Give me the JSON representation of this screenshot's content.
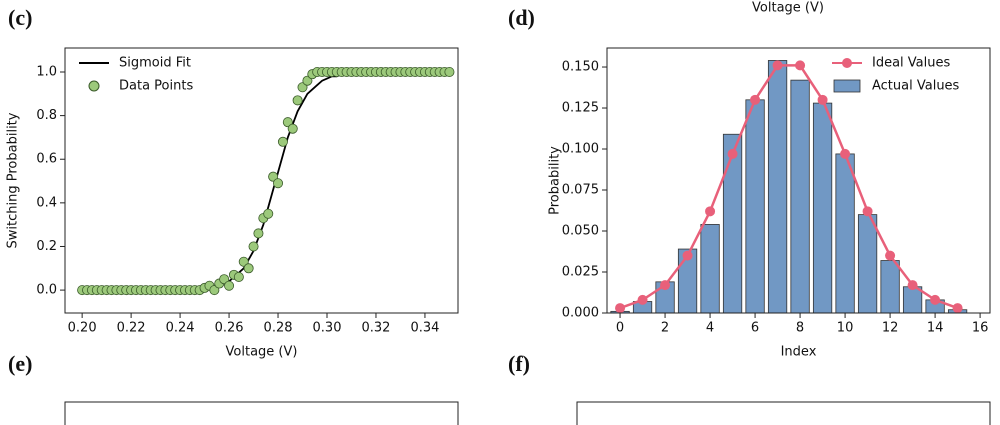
{
  "chart_data": [
    {
      "type": "scatter",
      "title": "(c)",
      "xlabel": "Voltage (V)",
      "ylabel": "Switching Probability",
      "legend": "upper left",
      "x": [
        0.2,
        0.202,
        0.204,
        0.206,
        0.208,
        0.21,
        0.212,
        0.214,
        0.216,
        0.218,
        0.22,
        0.222,
        0.224,
        0.226,
        0.228,
        0.23,
        0.232,
        0.234,
        0.236,
        0.238,
        0.24,
        0.242,
        0.244,
        0.246,
        0.248,
        0.25,
        0.252,
        0.254,
        0.256,
        0.258,
        0.26,
        0.262,
        0.264,
        0.266,
        0.268,
        0.27,
        0.272,
        0.274,
        0.276,
        0.278,
        0.28,
        0.282,
        0.284,
        0.286,
        0.288,
        0.29,
        0.292,
        0.294,
        0.296,
        0.298,
        0.3,
        0.302,
        0.304,
        0.306,
        0.308,
        0.31,
        0.312,
        0.314,
        0.316,
        0.318,
        0.32,
        0.322,
        0.324,
        0.326,
        0.328,
        0.33,
        0.332,
        0.334,
        0.336,
        0.338,
        0.34,
        0.342,
        0.344,
        0.346,
        0.348,
        0.35
      ],
      "series": [
        {
          "name": "Sigmoid Fit",
          "color": "#000000",
          "style": "line",
          "values": [
            0,
            0,
            0,
            0,
            0,
            0,
            0,
            0,
            0,
            0,
            0,
            0,
            0,
            0,
            0,
            0,
            0,
            0,
            0,
            0,
            0,
            0,
            0,
            0,
            0.01,
            0.01,
            0.01,
            0.02,
            0.02,
            0.03,
            0.04,
            0.06,
            0.08,
            0.1,
            0.14,
            0.18,
            0.24,
            0.3,
            0.38,
            0.46,
            0.54,
            0.62,
            0.7,
            0.76,
            0.82,
            0.86,
            0.9,
            0.92,
            0.94,
            0.96,
            0.97,
            0.98,
            0.98,
            0.99,
            0.99,
            0.99,
            1,
            1,
            1,
            1,
            1,
            1,
            1,
            1,
            1,
            1,
            1,
            1,
            1,
            1,
            1,
            1,
            1,
            1,
            1,
            1
          ]
        },
        {
          "name": "Data Points",
          "color": "#9cc97b",
          "style": "markers",
          "values": [
            0,
            0,
            0,
            0,
            0,
            0,
            0,
            0,
            0,
            0,
            0,
            0,
            0,
            0,
            0,
            0,
            0,
            0,
            0,
            0,
            0,
            0,
            0,
            0,
            0.0,
            0.01,
            0.02,
            0.0,
            0.03,
            0.05,
            0.02,
            0.07,
            0.06,
            0.13,
            0.1,
            0.2,
            0.26,
            0.33,
            0.35,
            0.52,
            0.49,
            0.68,
            0.77,
            0.74,
            0.87,
            0.93,
            0.96,
            0.99,
            1,
            1,
            1,
            1,
            1,
            1,
            1,
            1,
            1,
            1,
            1,
            1,
            1,
            1,
            1,
            1,
            1,
            1,
            1,
            1,
            1,
            1,
            1,
            1,
            1,
            1,
            1,
            1
          ]
        }
      ],
      "xlim": [
        0.193,
        0.3535
      ],
      "ylim": [
        -0.105,
        1.11
      ],
      "xticks": [
        {
          "value": 0.2,
          "label": "0.20"
        },
        {
          "value": 0.22,
          "label": "0.22"
        },
        {
          "value": 0.24,
          "label": "0.24"
        },
        {
          "value": 0.26,
          "label": "0.26"
        },
        {
          "value": 0.28,
          "label": "0.28"
        },
        {
          "value": 0.3,
          "label": "0.30"
        },
        {
          "value": 0.32,
          "label": "0.32"
        },
        {
          "value": 0.34,
          "label": "0.34"
        }
      ],
      "yticks": [
        {
          "value": 0,
          "label": "0.0"
        },
        {
          "value": 0.2,
          "label": "0.2"
        },
        {
          "value": 0.4,
          "label": "0.4"
        },
        {
          "value": 0.6,
          "label": "0.6"
        },
        {
          "value": 0.8,
          "label": "0.8"
        },
        {
          "value": 1,
          "label": "1.0"
        }
      ]
    },
    {
      "type": "bar",
      "title": "(d)",
      "xlabel": "Index",
      "ylabel": "Probability",
      "legend": "upper right",
      "x": [
        0,
        1,
        2,
        3,
        4,
        5,
        6,
        7,
        8,
        9,
        10,
        11,
        12,
        13,
        14,
        15
      ],
      "series": [
        {
          "name": "Ideal Values",
          "color": "#e8607a",
          "style": "line",
          "values": [
            0.003,
            0.008,
            0.017,
            0.035,
            0.062,
            0.097,
            0.13,
            0.151,
            0.151,
            0.13,
            0.097,
            0.062,
            0.035,
            0.017,
            0.008,
            0.003
          ]
        },
        {
          "name": "Actual Values",
          "color": "#7198c4",
          "style": "bar",
          "values": [
            0.001,
            0.007,
            0.019,
            0.039,
            0.054,
            0.109,
            0.13,
            0.154,
            0.142,
            0.128,
            0.097,
            0.06,
            0.032,
            0.016,
            0.008,
            0.002
          ]
        }
      ],
      "xlim": [
        -0.58,
        16.44
      ],
      "ylim": [
        0,
        0.1616
      ],
      "xticks": [
        0,
        2,
        4,
        6,
        8,
        10,
        12,
        14,
        16
      ],
      "yticks": [
        {
          "value": 0,
          "label": "0.000"
        },
        {
          "value": 0.025,
          "label": "0.025"
        },
        {
          "value": 0.05,
          "label": "0.050"
        },
        {
          "value": 0.075,
          "label": "0.075"
        },
        {
          "value": 0.1,
          "label": "0.100"
        },
        {
          "value": 0.125,
          "label": "0.125"
        },
        {
          "value": 0.15,
          "label": "0.150"
        }
      ]
    }
  ],
  "cropped_top_label": "Voltage (V)",
  "lower_panels": [
    "(e)",
    "(f)"
  ]
}
